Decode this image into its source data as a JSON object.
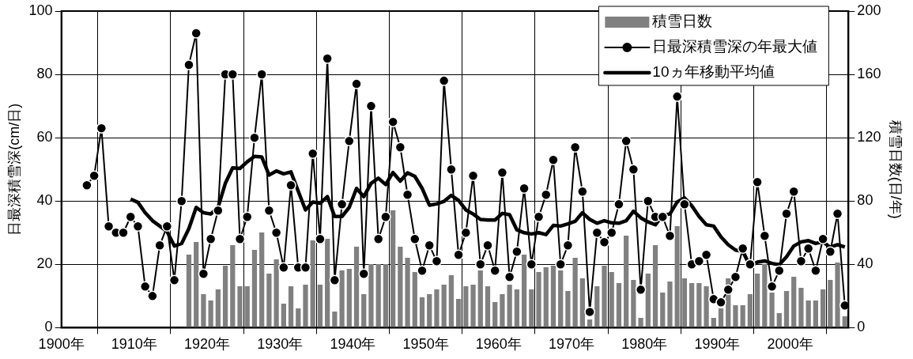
{
  "chart_data": {
    "type": "line",
    "ylabel": "日最深積雪深(cm/日)",
    "y2label": "積雪日数(日/年)",
    "xlim": [
      1899.5,
      2007.5
    ],
    "xticks": [
      {
        "value": 1899.5,
        "label": "1900年"
      },
      {
        "value": 1909.5,
        "label": "1910年"
      },
      {
        "value": 1919.5,
        "label": "1920年"
      },
      {
        "value": 1929.5,
        "label": "1930年"
      },
      {
        "value": 1939.5,
        "label": "1940年"
      },
      {
        "value": 1949.5,
        "label": "1950年"
      },
      {
        "value": 1959.5,
        "label": "1960年"
      },
      {
        "value": 1969.5,
        "label": "1970年"
      },
      {
        "value": 1979.5,
        "label": "1980年"
      },
      {
        "value": 1989.5,
        "label": "1990年"
      },
      {
        "value": 1999.5,
        "label": "2000年"
      }
    ],
    "ylim": [
      0,
      100
    ],
    "yticks": [
      0,
      20,
      40,
      60,
      80,
      100
    ],
    "y2lim": [
      0,
      200
    ],
    "y2ticks": [
      0,
      40,
      80,
      120,
      160,
      200
    ],
    "grid": true,
    "legend": "top right",
    "series": [
      {
        "name": "積雪日数",
        "type": "bar",
        "axis": "y2",
        "color": "#808080",
        "x": [
          1917,
          1918,
          1919,
          1920,
          1921,
          1922,
          1923,
          1924,
          1925,
          1926,
          1927,
          1928,
          1929,
          1930,
          1931,
          1932,
          1933,
          1934,
          1935,
          1936,
          1937,
          1938,
          1939,
          1940,
          1941,
          1942,
          1943,
          1944,
          1945,
          1946,
          1947,
          1948,
          1949,
          1950,
          1951,
          1952,
          1953,
          1954,
          1955,
          1956,
          1957,
          1958,
          1959,
          1960,
          1961,
          1962,
          1963,
          1964,
          1965,
          1966,
          1967,
          1968,
          1969,
          1970,
          1971,
          1972,
          1973,
          1974,
          1975,
          1976,
          1977,
          1978,
          1979,
          1980,
          1981,
          1982,
          1983,
          1984,
          1985,
          1986,
          1987,
          1988,
          1989,
          1990,
          1991,
          1992,
          1993,
          1994,
          1995,
          1996,
          1997,
          1998,
          1999,
          2000,
          2001,
          2002,
          2003,
          2004,
          2005,
          2006,
          2007
        ],
        "values": [
          46,
          54,
          21,
          17,
          24,
          39,
          52,
          26,
          26,
          49,
          60,
          34,
          43,
          15,
          26,
          12,
          27,
          55,
          27,
          56,
          10,
          36,
          37,
          51,
          21,
          40,
          40,
          40,
          74,
          51,
          44,
          35,
          19,
          21,
          24,
          27,
          33,
          18,
          26,
          27,
          36,
          26,
          16,
          21,
          27,
          24,
          46,
          24,
          35,
          38,
          39,
          36,
          23,
          44,
          31,
          5,
          26,
          39,
          35,
          28,
          58,
          30,
          6,
          34,
          52,
          22,
          29,
          64,
          31,
          28,
          28,
          26,
          6,
          12,
          31,
          14,
          14,
          21,
          34,
          40,
          22,
          9,
          23,
          32,
          25,
          17,
          17,
          24,
          30,
          41,
          7
        ]
      },
      {
        "name": "日最深積雪深の年最大値",
        "color": "#000000",
        "marker": "circle",
        "line_style": "solid",
        "x": [
          1903,
          1904,
          1905,
          1906,
          1907,
          1908,
          1909,
          1910,
          1911,
          1912,
          1913,
          1914,
          1915,
          1916,
          1917,
          1918,
          1919,
          1920,
          1921,
          1922,
          1923,
          1924,
          1925,
          1926,
          1927,
          1928,
          1929,
          1930,
          1931,
          1932,
          1933,
          1934,
          1935,
          1936,
          1937,
          1938,
          1939,
          1940,
          1941,
          1942,
          1943,
          1944,
          1945,
          1946,
          1947,
          1948,
          1949,
          1950,
          1951,
          1952,
          1953,
          1954,
          1955,
          1956,
          1957,
          1958,
          1959,
          1960,
          1961,
          1962,
          1963,
          1964,
          1965,
          1966,
          1967,
          1968,
          1969,
          1970,
          1971,
          1972,
          1973,
          1974,
          1975,
          1976,
          1977,
          1978,
          1979,
          1980,
          1981,
          1982,
          1983,
          1984,
          1985,
          1986,
          1987,
          1988,
          1989,
          1990,
          1991,
          1992,
          1993,
          1994,
          1995,
          1996,
          1997,
          1998,
          1999,
          2000,
          2001,
          2002,
          2003,
          2004,
          2005,
          2006,
          2007
        ],
        "values": [
          45,
          48,
          63,
          32,
          30,
          30,
          35,
          32,
          13,
          10,
          26,
          32,
          15,
          40,
          83,
          93,
          17,
          28,
          37,
          80,
          80,
          28,
          35,
          60,
          80,
          37,
          30,
          19,
          45,
          19,
          19,
          55,
          28,
          85,
          15,
          39,
          59,
          77,
          17,
          70,
          28,
          35,
          65,
          57,
          42,
          28,
          18,
          26,
          21,
          78,
          50,
          23,
          30,
          48,
          20,
          26,
          18,
          49,
          16,
          24,
          44,
          20,
          35,
          42,
          53,
          20,
          26,
          57,
          43,
          5,
          30,
          27,
          30,
          39,
          59,
          50,
          12,
          40,
          35,
          35,
          29,
          73,
          39,
          20,
          21,
          23,
          9,
          8,
          12,
          16,
          25,
          20,
          46,
          29,
          13,
          18,
          36,
          43,
          21,
          25,
          18,
          28,
          24,
          36,
          7
        ]
      },
      {
        "name": "10ヵ年移動平均値",
        "color": "#000000",
        "marker": "none",
        "line_style": "solid",
        "x": [
          1909,
          1910,
          1911,
          1912,
          1913,
          1914,
          1915,
          1916,
          1917,
          1918,
          1919,
          1920,
          1921,
          1922,
          1923,
          1924,
          1925,
          1926,
          1927,
          1928,
          1929,
          1930,
          1931,
          1932,
          1933,
          1934,
          1935,
          1936,
          1937,
          1938,
          1939,
          1940,
          1941,
          1942,
          1943,
          1944,
          1945,
          1946,
          1947,
          1948,
          1949,
          1950,
          1951,
          1952,
          1953,
          1954,
          1955,
          1956,
          1957,
          1958,
          1959,
          1960,
          1961,
          1962,
          1963,
          1964,
          1965,
          1966,
          1967,
          1968,
          1969,
          1970,
          1971,
          1972,
          1973,
          1974,
          1975,
          1976,
          1977,
          1978,
          1979,
          1980,
          1981,
          1982,
          1983,
          1984,
          1985,
          1986,
          1987,
          1988,
          1989,
          1990,
          1991,
          1992,
          1993,
          1994,
          1995,
          1996,
          1997,
          1998,
          1999,
          2000,
          2001,
          2002,
          2003,
          2004,
          2005,
          2006,
          2007
        ],
        "values": [
          40.6,
          39.6,
          36.3,
          33.8,
          32.1,
          30.4,
          25.8,
          26.6,
          31.3,
          38,
          36.3,
          35.9,
          38,
          45.6,
          50.5,
          50.3,
          52.4,
          54.1,
          53.9,
          48.2,
          49.5,
          48.6,
          49.2,
          43.1,
          37.2,
          39.7,
          39.3,
          41.4,
          35.1,
          35.1,
          38,
          44,
          41.4,
          45.6,
          47.2,
          45.2,
          49,
          46.3,
          48.9,
          47.8,
          44,
          38.7,
          39.1,
          39.9,
          41.8,
          40.2,
          37.2,
          35.9,
          34.2,
          34,
          34,
          36.1,
          35.7,
          30.9,
          30,
          29.6,
          30,
          29.4,
          32.3,
          32.1,
          32.8,
          33.6,
          36.3,
          34.2,
          33,
          33.8,
          33.1,
          33,
          33.8,
          36.8,
          34.7,
          33.4,
          32.5,
          35.5,
          35.9,
          39.7,
          41,
          38.5,
          35.1,
          32.5,
          32.1,
          28.7,
          26.2,
          24.5,
          24.1,
          19.4,
          20.7,
          21.1,
          20.3,
          19.9,
          22.4,
          25.8,
          27.1,
          27.5,
          26.6,
          27.1,
          25.4,
          26.2,
          25.5
        ]
      }
    ]
  }
}
